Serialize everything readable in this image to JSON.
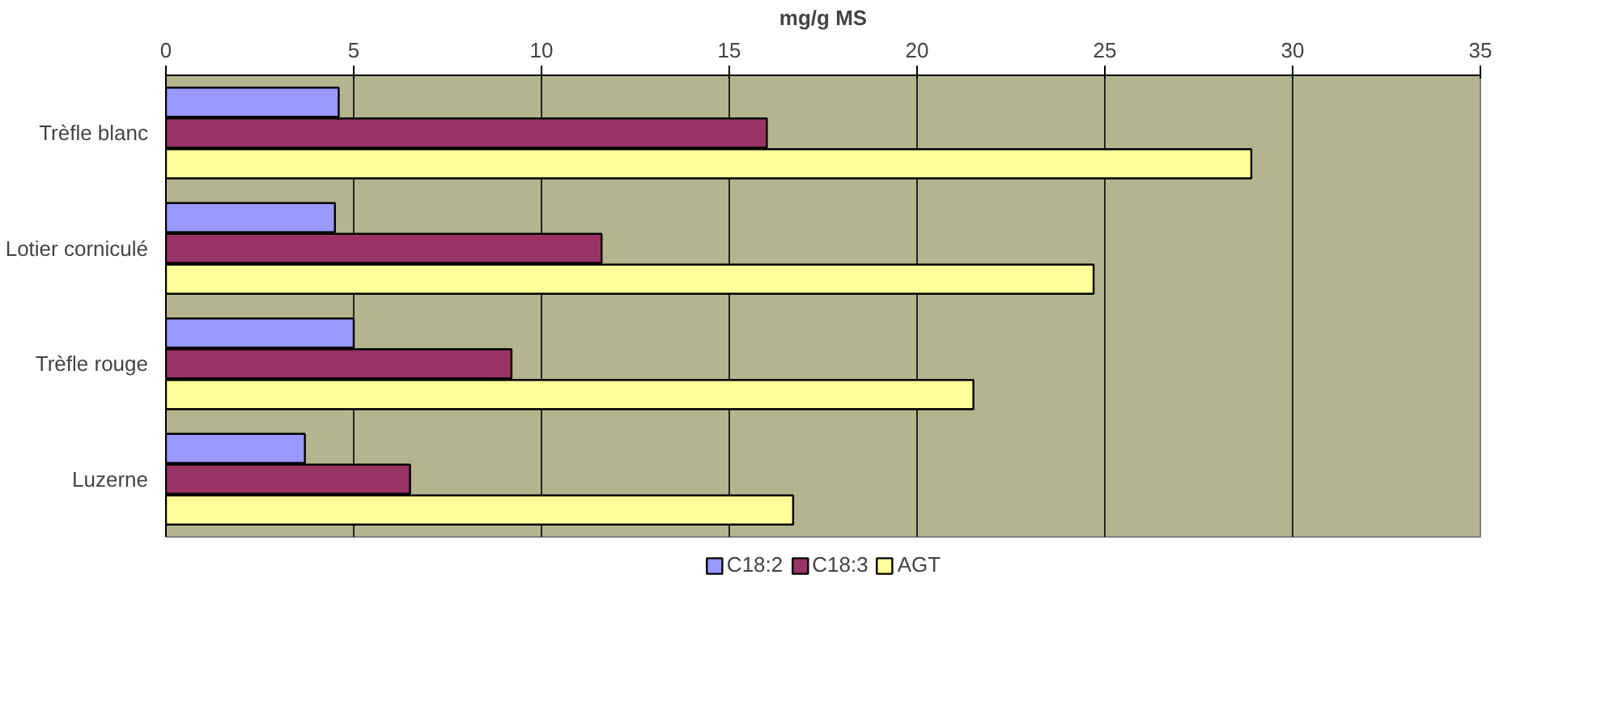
{
  "chart_data": {
    "type": "bar",
    "orientation": "horizontal",
    "xlabel": "mg/g MS",
    "categories": [
      "Trèfle blanc",
      "Lotier corniculé",
      "Trèfle rouge",
      "Luzerne"
    ],
    "series": [
      {
        "name": "C18:2",
        "color": "#9999ff",
        "values": [
          4.6,
          4.5,
          5.0,
          3.7
        ]
      },
      {
        "name": "C18:3",
        "color": "#993366",
        "values": [
          16.0,
          11.6,
          9.2,
          6.5
        ]
      },
      {
        "name": "AGT",
        "color": "#ffff99",
        "values": [
          28.9,
          24.7,
          21.5,
          16.7
        ]
      }
    ],
    "xlim": [
      0,
      35
    ],
    "xticks": [
      0,
      5,
      10,
      15,
      20,
      25,
      30,
      35
    ],
    "grid": "x",
    "legend": "bottom"
  }
}
